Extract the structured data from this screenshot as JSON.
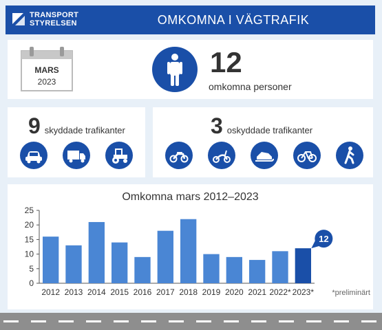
{
  "header": {
    "logo_line1": "TRANSPORT",
    "logo_line2": "STYRELSEN",
    "title": "OMKOMNA I VÄGTRAFIK"
  },
  "summary": {
    "month": "MARS",
    "year": "2023",
    "count": "12",
    "count_label": "omkomna personer"
  },
  "protected": {
    "count": "9",
    "label": "skyddade trafikanter",
    "icons": [
      "car-icon",
      "truck-icon",
      "tractor-icon"
    ]
  },
  "unprotected": {
    "count": "3",
    "label": "oskyddade trafikanter",
    "icons": [
      "motorcycle-icon",
      "moped-icon",
      "snowmobile-icon",
      "bicycle-icon",
      "pedestrian-icon"
    ]
  },
  "colors": {
    "brand": "#1a4fa8",
    "bar": "#4a86d4",
    "bar_highlight": "#1a4fa8"
  },
  "chart_data": {
    "type": "bar",
    "title": "Omkomna mars 2012–2023",
    "categories": [
      "2012",
      "2013",
      "2014",
      "2015",
      "2016",
      "2017",
      "2018",
      "2019",
      "2020",
      "2021",
      "2022*",
      "2023*"
    ],
    "values": [
      16,
      13,
      21,
      14,
      9,
      18,
      22,
      10,
      9,
      8,
      11,
      12
    ],
    "highlight_value": "12",
    "ylim": [
      0,
      25
    ],
    "yticks": [
      "0",
      "5",
      "10",
      "15",
      "20",
      "25"
    ],
    "footnote": "*preliminärt",
    "grid": false
  }
}
